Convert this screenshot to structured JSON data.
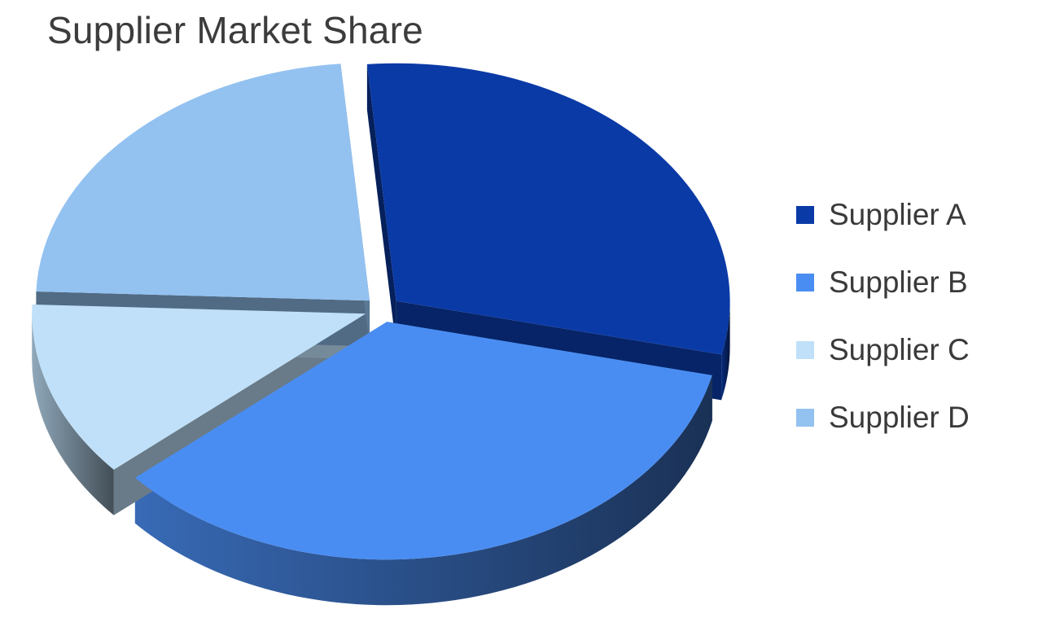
{
  "chart_data": {
    "type": "pie",
    "title": "Supplier Market Share",
    "categories": [
      "Supplier A",
      "Supplier B",
      "Supplier C",
      "Supplier D"
    ],
    "values": [
      30,
      35,
      12,
      23
    ],
    "exploded": true,
    "three_d": true,
    "legend_position": "right",
    "colors": [
      "#0a3aa6",
      "#4a8df2",
      "#bfe0f8",
      "#93c2f1"
    ]
  }
}
